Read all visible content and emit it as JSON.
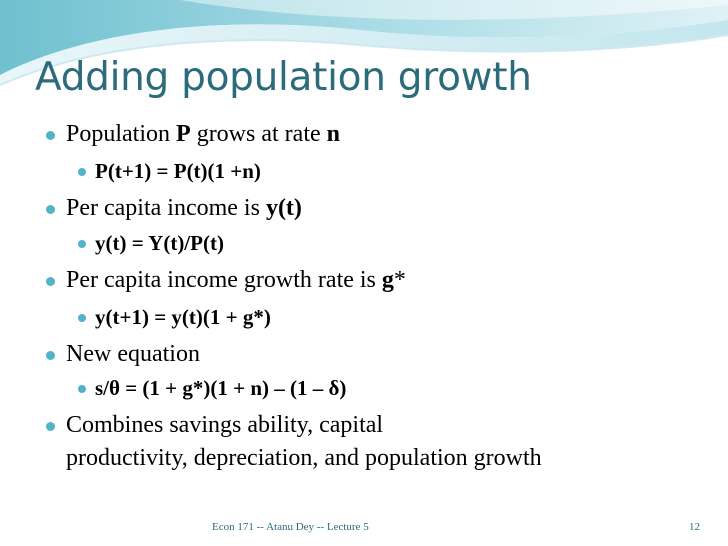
{
  "slide": {
    "title": "Adding population growth",
    "bullets": [
      {
        "pre": "Population ",
        "b1": "P",
        "mid": " grows at rate ",
        "b2": "n"
      },
      {
        "text": "P(t+1) = P(t)(1 +n)"
      },
      {
        "pre": "Per capita income is ",
        "b1": "y(t)"
      },
      {
        "text": "y(t) = Y(t)/P(t)"
      },
      {
        "pre": "Per capita income growth rate is ",
        "b1": "g",
        "post": "*"
      },
      {
        "text": "y(t+1) = y(t)(1 + g*)"
      },
      {
        "text": "New equation"
      },
      {
        "text": "s/θ = (1 + g*)(1 + n) – (1 – δ)"
      },
      {
        "line1": "Combines savings ability, capital",
        "line2": "productivity, depreciation, and population growth"
      }
    ],
    "footer": "Econ 171 -- Atanu Dey -- Lecture 5",
    "page_number": "12"
  },
  "colors": {
    "title": "#2c6b7b",
    "bullet": "#4fb5c6",
    "wave_light": "#d6eef3",
    "wave_mid": "#9fd4df",
    "wave_dark": "#5fb3c4"
  }
}
